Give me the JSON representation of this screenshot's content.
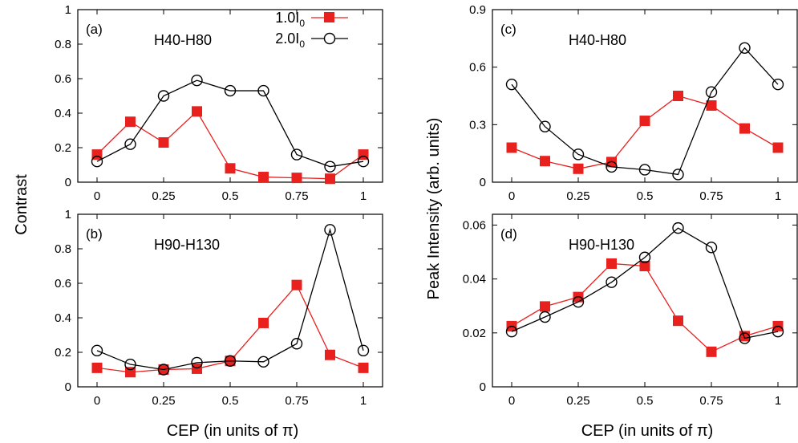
{
  "figure": {
    "ylabel_left": "Contrast",
    "ylabel_right": "Peak Intensity (arb. units)",
    "xlabel": "CEP (in units of π)"
  },
  "legend": {
    "entries": [
      {
        "series": "1.0I0",
        "text": "1.0I",
        "sub": "0"
      },
      {
        "series": "2.0I0",
        "text": "2.0I",
        "sub": "0"
      }
    ]
  },
  "colors": {
    "red": "#e8201e",
    "black": "#000000"
  },
  "chart_data": [
    {
      "id": "a",
      "type": "line",
      "panel_label": "(a)",
      "range_label": "H40-H80",
      "x": [
        0,
        0.125,
        0.25,
        0.375,
        0.5,
        0.625,
        0.75,
        0.875,
        1
      ],
      "xticks": [
        0,
        0.25,
        0.5,
        0.75,
        1
      ],
      "xtick_labels": [
        "0",
        "0.25",
        "0.5",
        "0.75",
        "1"
      ],
      "ylim": [
        0,
        1
      ],
      "yticks": [
        0,
        0.2,
        0.4,
        0.6,
        0.8,
        1
      ],
      "ytick_labels": [
        "0",
        "0.2",
        "0.4",
        "0.6",
        "0.8",
        "1"
      ],
      "series": [
        {
          "name": "1.0I0",
          "marker": "square",
          "color": "#e8201e",
          "values": [
            0.16,
            0.35,
            0.23,
            0.41,
            0.08,
            0.03,
            0.025,
            0.02,
            0.16
          ]
        },
        {
          "name": "2.0I0",
          "marker": "circle",
          "color": "#000000",
          "values": [
            0.12,
            0.22,
            0.5,
            0.59,
            0.53,
            0.53,
            0.16,
            0.09,
            0.12
          ]
        }
      ]
    },
    {
      "id": "b",
      "type": "line",
      "panel_label": "(b)",
      "range_label": "H90-H130",
      "x": [
        0,
        0.125,
        0.25,
        0.375,
        0.5,
        0.625,
        0.75,
        0.875,
        1
      ],
      "xticks": [
        0,
        0.25,
        0.5,
        0.75,
        1
      ],
      "xtick_labels": [
        "0",
        "0.25",
        "0.5",
        "0.75",
        "1"
      ],
      "ylim": [
        0,
        1
      ],
      "yticks": [
        0,
        0.2,
        0.4,
        0.6,
        0.8,
        1
      ],
      "ytick_labels": [
        "0",
        "0.2",
        "0.4",
        "0.6",
        "0.8",
        "1"
      ],
      "series": [
        {
          "name": "1.0I0",
          "marker": "square",
          "color": "#e8201e",
          "values": [
            0.11,
            0.085,
            0.1,
            0.105,
            0.15,
            0.37,
            0.59,
            0.185,
            0.11
          ]
        },
        {
          "name": "2.0I0",
          "marker": "circle",
          "color": "#000000",
          "values": [
            0.21,
            0.13,
            0.1,
            0.14,
            0.15,
            0.145,
            0.25,
            0.91,
            0.21
          ]
        }
      ]
    },
    {
      "id": "c",
      "type": "line",
      "panel_label": "(c)",
      "range_label": "H40-H80",
      "x": [
        0,
        0.125,
        0.25,
        0.375,
        0.5,
        0.625,
        0.75,
        0.875,
        1
      ],
      "xticks": [
        0,
        0.25,
        0.5,
        0.75,
        1
      ],
      "xtick_labels": [
        "0",
        "0.25",
        "0.5",
        "0.75",
        "1"
      ],
      "ylim": [
        0,
        0.9
      ],
      "yticks": [
        0,
        0.3,
        0.6,
        0.9
      ],
      "ytick_labels": [
        "0",
        "0.3",
        "0.6",
        "0.9"
      ],
      "series": [
        {
          "name": "1.0I0",
          "marker": "square",
          "color": "#e8201e",
          "values": [
            0.18,
            0.11,
            0.07,
            0.105,
            0.32,
            0.45,
            0.4,
            0.28,
            0.18
          ]
        },
        {
          "name": "2.0I0",
          "marker": "circle",
          "color": "#000000",
          "values": [
            0.51,
            0.29,
            0.145,
            0.08,
            0.065,
            0.04,
            0.47,
            0.7,
            0.51
          ]
        }
      ]
    },
    {
      "id": "d",
      "type": "line",
      "panel_label": "(d)",
      "range_label": "H90-H130",
      "x": [
        0,
        0.125,
        0.25,
        0.375,
        0.5,
        0.625,
        0.75,
        0.875,
        1
      ],
      "xticks": [
        0,
        0.25,
        0.5,
        0.75,
        1
      ],
      "xtick_labels": [
        "0",
        "0.25",
        "0.5",
        "0.75",
        "1"
      ],
      "ylim": [
        0,
        0.064
      ],
      "yticks": [
        0,
        0.02,
        0.04,
        0.06
      ],
      "ytick_labels": [
        "0",
        "0.02",
        "0.04",
        "0.06"
      ],
      "series": [
        {
          "name": "1.0I0",
          "marker": "square",
          "color": "#e8201e",
          "values": [
            0.0225,
            0.0298,
            0.0333,
            0.0457,
            0.0448,
            0.0245,
            0.013,
            0.0188,
            0.0225
          ]
        },
        {
          "name": "2.0I0",
          "marker": "circle",
          "color": "#000000",
          "values": [
            0.0205,
            0.0259,
            0.0315,
            0.0388,
            0.048,
            0.0589,
            0.0517,
            0.018,
            0.0205
          ]
        }
      ]
    }
  ]
}
